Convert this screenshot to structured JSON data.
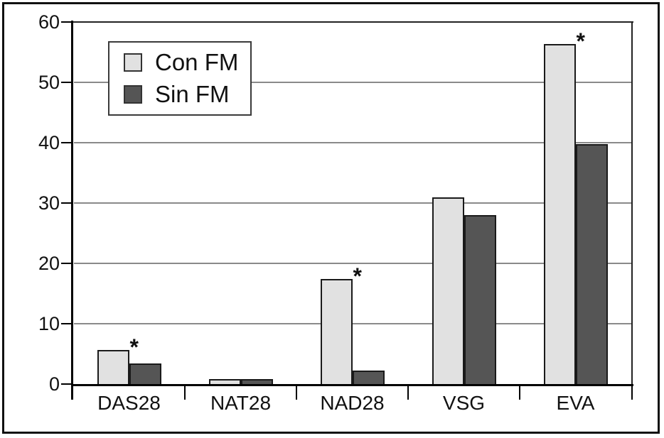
{
  "figure": {
    "background": "#ffffff",
    "frame_color": "#111111"
  },
  "chart_data": {
    "type": "bar",
    "title": "",
    "xlabel": "",
    "ylabel": "",
    "categories": [
      "DAS28",
      "NAT28",
      "NAD28",
      "VSG",
      "EVA"
    ],
    "series": [
      {
        "name": "Con FM",
        "color": "#e1e1e1",
        "values": [
          5.7,
          0.8,
          17.4,
          31,
          56.4
        ]
      },
      {
        "name": "Sin FM",
        "color": "#555555",
        "values": [
          3.4,
          0.8,
          2.2,
          28,
          39.8
        ]
      }
    ],
    "significance_marker": "*",
    "significant_con_fm": [
      true,
      false,
      true,
      false,
      true
    ],
    "significant_categories": [
      "DAS28",
      "NAD28",
      "EVA"
    ],
    "ylim": [
      0,
      60
    ],
    "yticks": [
      0,
      10,
      20,
      30,
      40,
      50,
      60
    ],
    "grid": "horizontal",
    "gridline_color": "#8a8a8a",
    "axis_color": "#000000",
    "bar_border_color": "#1a1a1a",
    "legend_position": "top-left"
  }
}
